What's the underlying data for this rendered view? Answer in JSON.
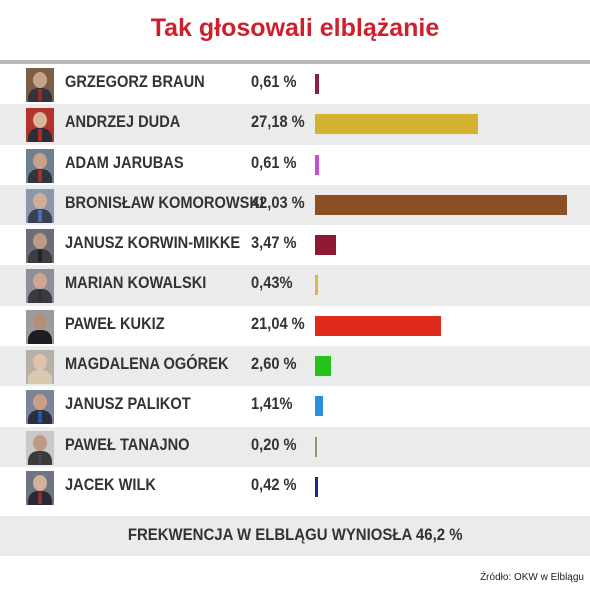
{
  "chart_data": {
    "type": "bar",
    "orientation": "horizontal",
    "title": "Tak głosowali elblążanie",
    "categories": [
      "GRZEGORZ BRAUN",
      "ANDRZEJ DUDA",
      "ADAM JARUBAS",
      "BRONISŁAW KOMOROWSKI",
      "JANUSZ KORWIN-MIKKE",
      "MARIAN KOWALSKI",
      "PAWEŁ KUKIZ",
      "MAGDALENA OGÓREK",
      "JANUSZ PALIKOT",
      "PAWEŁ TANAJNO",
      "JACEK WILK"
    ],
    "values": [
      0.61,
      27.18,
      0.61,
      42.03,
      3.47,
      0.43,
      21.04,
      2.6,
      1.41,
      0.2,
      0.42
    ],
    "value_labels": [
      "0,61 %",
      "27,18 %",
      "0,61 %",
      "42,03 %",
      "3,47 %",
      "0,43%",
      "21,04 %",
      "2,60 %",
      "1,41%",
      "0,20 %",
      "0,42 %"
    ],
    "colors": [
      "#8e1d4a",
      "#d3b22f",
      "#c64fd3",
      "#8b4f22",
      "#8e1a36",
      "#e0b44a",
      "#e02a1e",
      "#22c41b",
      "#2b8fe0",
      "#8a9a6a",
      "#1c2a8f"
    ],
    "xlim": [
      0,
      42.03
    ],
    "grid": false,
    "legend": "none"
  },
  "footer": {
    "turnout": "FREKWENCJA W ELBLĄGU WYNIOSŁA 46,2 %",
    "source": "Źródło: OKW w Elblągu"
  }
}
